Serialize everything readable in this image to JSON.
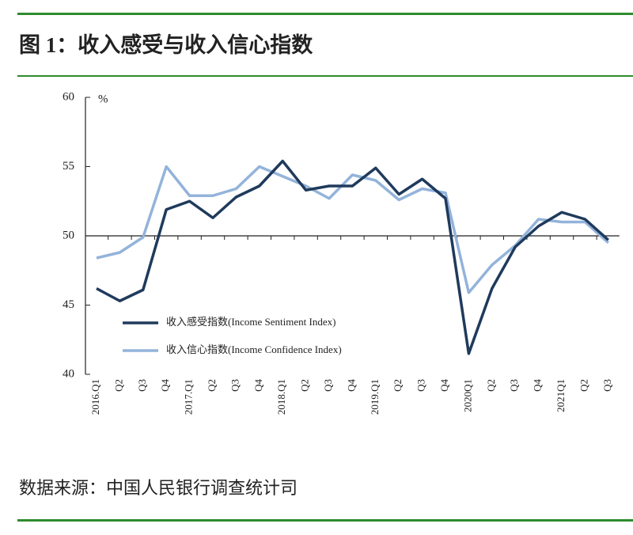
{
  "chart_data": {
    "type": "line",
    "title": "图 1：收入感受与收入信心指数",
    "source": "数据来源：中国人民银行调查统计司",
    "y_unit": "%",
    "categories": [
      "2016.Q1",
      "Q2",
      "Q3",
      "Q4",
      "2017.Q1",
      "Q2",
      "Q3",
      "Q4",
      "2018.Q1",
      "Q2",
      "Q3",
      "Q4",
      "2019.Q1",
      "Q2",
      "Q3",
      "Q4",
      "2020Q1",
      "Q2",
      "Q3",
      "Q4",
      "2021Q1",
      "Q2",
      "Q3"
    ],
    "series": [
      {
        "name": "收入感受指数(Income Sentiment Index)",
        "color": "#1f3a5c",
        "values": [
          46.2,
          45.3,
          46.1,
          51.9,
          52.5,
          51.3,
          52.8,
          53.6,
          55.4,
          53.3,
          53.6,
          53.6,
          54.9,
          53.0,
          54.1,
          52.7,
          41.5,
          46.2,
          49.2,
          50.7,
          51.7,
          51.2,
          49.7
        ]
      },
      {
        "name": "收入信心指数(Income Confidence Index)",
        "color": "#93b3da",
        "values": [
          48.4,
          48.8,
          49.9,
          55.0,
          52.9,
          52.9,
          53.4,
          55.0,
          54.3,
          53.6,
          52.7,
          54.4,
          54.0,
          52.6,
          53.4,
          53.1,
          45.9,
          47.9,
          49.3,
          51.2,
          51.0,
          51.0,
          49.5
        ]
      }
    ],
    "ylim": [
      40,
      60
    ],
    "yticks": [
      40,
      45,
      50,
      55,
      60
    ],
    "baseline": 50
  }
}
